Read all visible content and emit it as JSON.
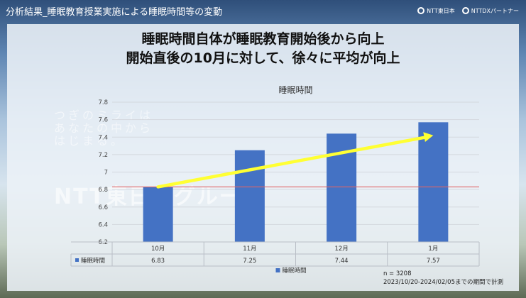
{
  "header": {
    "title": "分析結果_睡眠教育授業実施による睡眠時間等の変動",
    "logo_left": "NTT東日本",
    "logo_right": "NTTDXパートナー"
  },
  "headline": {
    "line1": "睡眠時間自体が睡眠教育開始後から向上",
    "line2": "開始直後の10月に対して、徐々に平均が向上"
  },
  "watermark": {
    "line1": "つぎのミライは",
    "line2": "あなたの中から",
    "line3": "はじまる。",
    "brand": "NTT東日本グループ"
  },
  "note": {
    "n": "n = 3208",
    "period": "2023/10/20-2024/02/05までの期間で計測"
  },
  "chart_data": {
    "type": "bar",
    "title": "睡眠時間",
    "categories": [
      "10月",
      "11月",
      "12月",
      "1月"
    ],
    "series": [
      {
        "name": "睡眠時間",
        "values": [
          6.83,
          7.25,
          7.44,
          7.57
        ],
        "color": "#4472c4"
      }
    ],
    "ylim": [
      6.2,
      7.8
    ],
    "yticks": [
      6.2,
      6.4,
      6.6,
      6.8,
      7,
      7.2,
      7.4,
      7.6,
      7.8
    ],
    "reference_line": {
      "value": 6.83,
      "color": "#e06666"
    },
    "trend_arrow": {
      "from": 6.83,
      "to": 7.42,
      "color": "#ffff33"
    },
    "data_table": true,
    "legend": "bottom",
    "grid": true
  }
}
